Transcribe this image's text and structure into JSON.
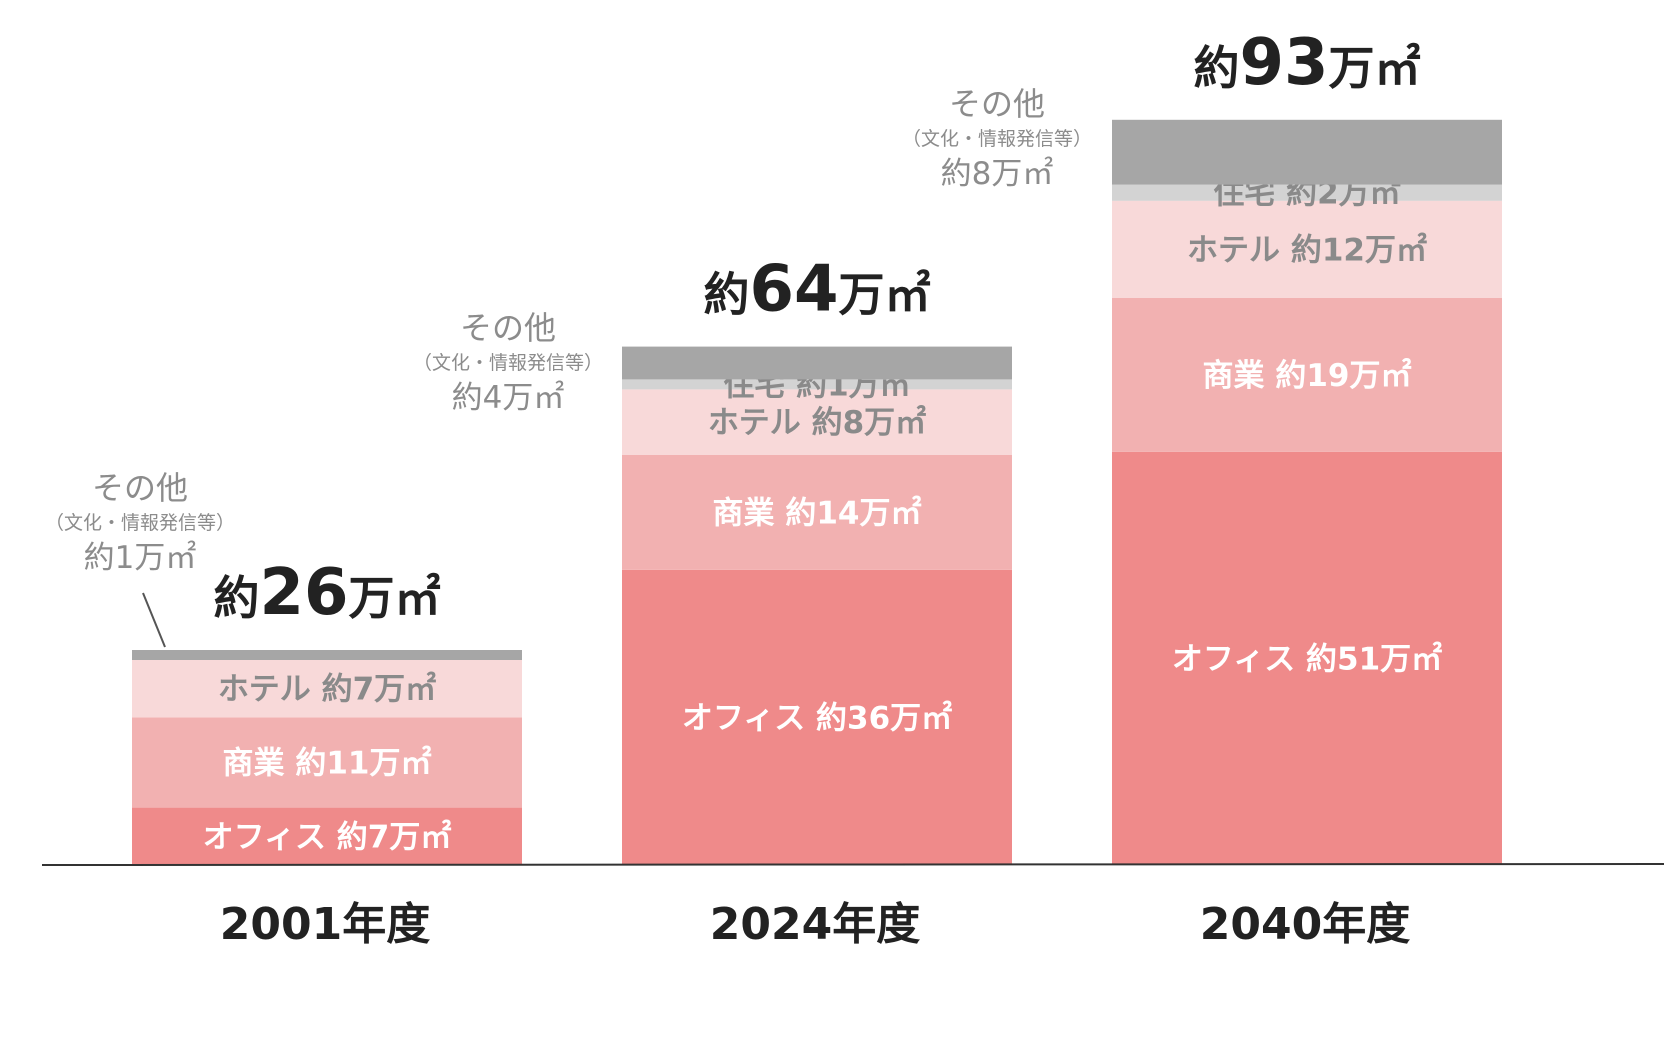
{
  "chart_data": {
    "type": "bar",
    "stacked": true,
    "unit": "万㎡",
    "categories": [
      "2001年度",
      "2024年度",
      "2040年度"
    ],
    "totals": [
      26,
      64,
      93
    ],
    "total_labels": [
      {
        "prefix": "約",
        "number": "26",
        "suffix": "万㎡"
      },
      {
        "prefix": "約",
        "number": "64",
        "suffix": "万㎡"
      },
      {
        "prefix": "約",
        "number": "93",
        "suffix": "万㎡"
      }
    ],
    "series": [
      {
        "name": "オフィス",
        "values": [
          7,
          36,
          51
        ],
        "labels": [
          "オフィス 約7万㎡",
          "オフィス 約36万㎡",
          "オフィス 約51万㎡"
        ],
        "color": "#ef8a8a",
        "text_color": "#ffffff"
      },
      {
        "name": "商業",
        "values": [
          11,
          14,
          19
        ],
        "labels": [
          "商業 約11万㎡",
          "商業 約14万㎡",
          "商業 約19万㎡"
        ],
        "color": "#f2b1b1",
        "text_color": "#ffffff"
      },
      {
        "name": "ホテル",
        "values": [
          7,
          8,
          12
        ],
        "labels": [
          "ホテル 約7万㎡",
          "ホテル 約8万㎡",
          "ホテル 約12万㎡"
        ],
        "color": "#f8d9d9",
        "text_color": "#8a8a8a"
      },
      {
        "name": "住宅",
        "values": [
          0,
          1,
          2
        ],
        "labels": [
          "",
          "住宅 約1万㎡",
          "住宅 約2万㎡"
        ],
        "color": "#d3d3d3",
        "text_color": "#8a8a8a"
      },
      {
        "name": "その他",
        "values": [
          1,
          4,
          8
        ],
        "labels": [
          "",
          "",
          ""
        ],
        "color": "#a6a6a6",
        "text_color": "#8a8a8a"
      }
    ],
    "other_annotations": [
      {
        "name": "その他",
        "desc": "（文化・情報発信等）",
        "value": "約1万㎡"
      },
      {
        "name": "その他",
        "desc": "（文化・情報発信等）",
        "value": "約4万㎡"
      },
      {
        "name": "その他",
        "desc": "（文化・情報発信等）",
        "value": "約8万㎡"
      }
    ],
    "baseline_color": "#333333"
  }
}
